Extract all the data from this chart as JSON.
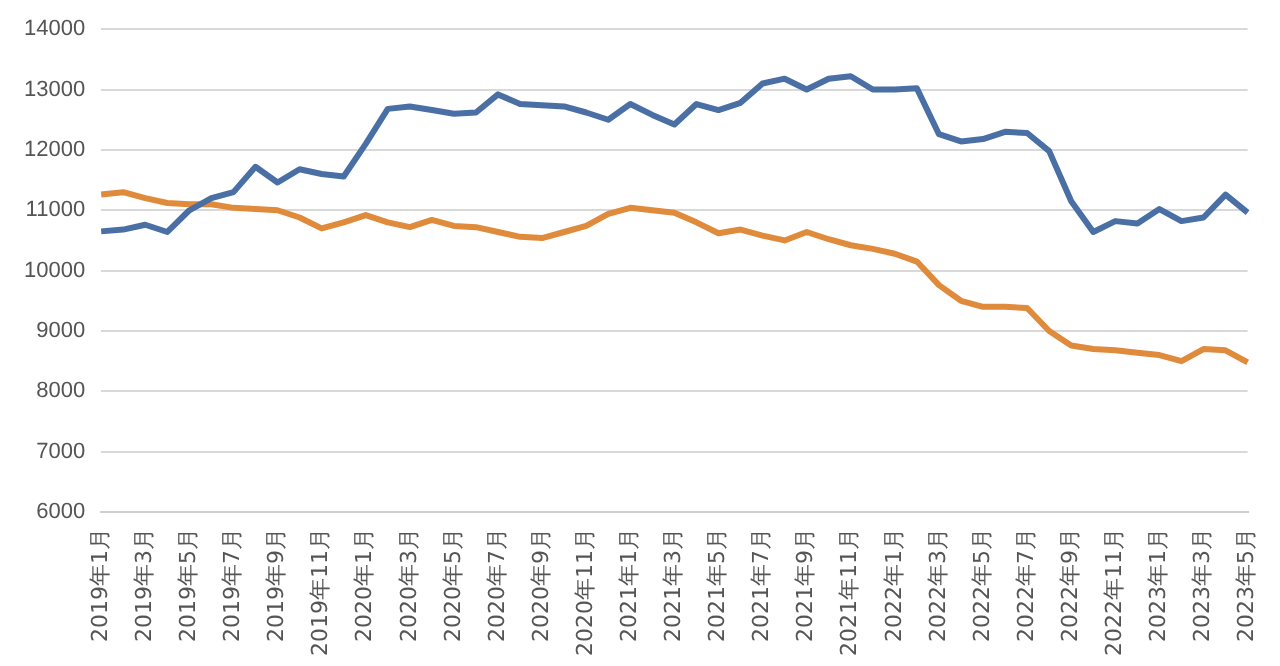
{
  "chart_data": {
    "type": "line",
    "categories": [
      "2019年1月",
      null,
      "2019年3月",
      null,
      "2019年5月",
      null,
      "2019年7月",
      null,
      "2019年9月",
      null,
      "2019年11月",
      null,
      "2020年1月",
      null,
      "2020年3月",
      null,
      "2020年5月",
      null,
      "2020年7月",
      null,
      "2020年9月",
      null,
      "2020年11月",
      null,
      "2021年1月",
      null,
      "2021年3月",
      null,
      "2021年5月",
      null,
      "2021年7月",
      null,
      "2021年9月",
      null,
      "2021年11月",
      null,
      "2022年1月",
      null,
      "2022年3月",
      null,
      "2022年5月",
      null,
      "2022年7月",
      null,
      "2022年9月",
      null,
      "2022年11月",
      null,
      "2023年1月",
      null,
      "2023年3月",
      null,
      "2023年5月"
    ],
    "series": [
      {
        "color": "#4a6fa5",
        "values": [
          10650,
          10680,
          10760,
          10640,
          11000,
          11200,
          11300,
          11720,
          11460,
          11680,
          11600,
          11560,
          12100,
          12680,
          12720,
          12660,
          12600,
          12620,
          12920,
          12760,
          12740,
          12720,
          12620,
          12500,
          12760,
          12580,
          12420,
          12760,
          12660,
          12780,
          13100,
          13180,
          13000,
          13180,
          13220,
          13000,
          13000,
          13020,
          12260,
          12140,
          12180,
          12300,
          12280,
          11980,
          11150,
          10640,
          10820,
          10780,
          11020,
          10820,
          10880,
          11260,
          10960
        ]
      },
      {
        "color": "#e08a3c",
        "values": [
          11260,
          11300,
          11200,
          11120,
          11100,
          11100,
          11040,
          11020,
          11000,
          10880,
          10700,
          10800,
          10920,
          10800,
          10720,
          10840,
          10740,
          10720,
          10640,
          10560,
          10540,
          10640,
          10740,
          10940,
          11040,
          11000,
          10960,
          10800,
          10620,
          10680,
          10580,
          10500,
          10640,
          10520,
          10420,
          10360,
          10280,
          10150,
          9760,
          9500,
          9400,
          9400,
          9380,
          9000,
          8760,
          8700,
          8680,
          8640,
          8600,
          8500,
          8700,
          8680,
          8480
        ]
      }
    ],
    "ylim": [
      6000,
      14000
    ],
    "yticks": [
      6000,
      7000,
      8000,
      9000,
      10000,
      11000,
      12000,
      13000,
      14000
    ],
    "grid": "y",
    "legend": false,
    "marker": "none",
    "line_style": "solid"
  }
}
